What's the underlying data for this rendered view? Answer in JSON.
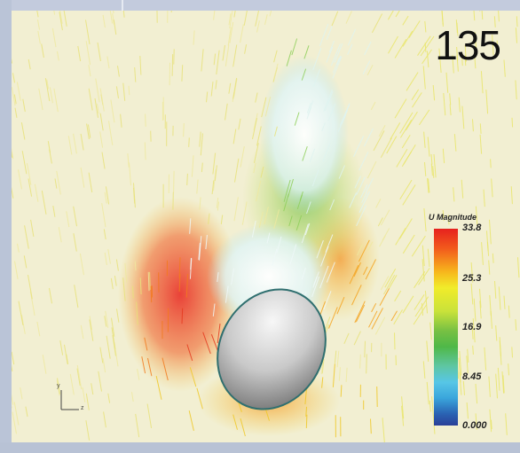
{
  "image": {
    "frame_number": "135",
    "legend": {
      "title": "U Magnitude",
      "ticks": [
        "33.8",
        "25.3",
        "16.9",
        "8.45",
        "0.000"
      ]
    },
    "axis_triad": {
      "y_label": "y",
      "x_label": "z"
    }
  }
}
